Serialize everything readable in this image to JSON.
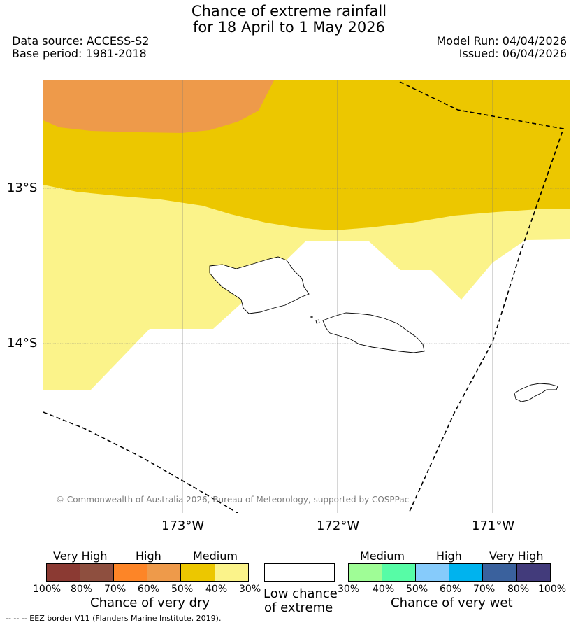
{
  "title": {
    "line1": "Chance of extreme rainfall",
    "line2": "for 18 April to 1 May 2026"
  },
  "meta": {
    "data_source": "Data source: ACCESS-S2",
    "base_period": "Base period: 1981-2018",
    "model_run": "Model Run: 04/04/2026",
    "issued": "Issued: 06/04/2026"
  },
  "map": {
    "lat_labels": [
      "13°S",
      "14°S"
    ],
    "lon_labels": [
      "173°W",
      "172°W",
      "171°W"
    ],
    "copyright": "© Commonwealth of Australia 2026, Bureau of Meteorology, supported by COSPPac",
    "region_colors": {
      "high": "#ee9a4a",
      "medium_dark": "#ecc700",
      "medium_light": "#fbf38a"
    },
    "islands": [
      "Savai'i",
      "Upolu",
      "Tutuila"
    ]
  },
  "legend": {
    "dry": {
      "levels": [
        {
          "label": "Very High",
          "colors": [
            "#8b3a33",
            "#8e4f3f"
          ]
        },
        {
          "label": "High",
          "colors": [
            "#fd8527",
            "#ee9a4a"
          ]
        },
        {
          "label": "Medium",
          "colors": [
            "#ecc700",
            "#fbf38a"
          ]
        }
      ],
      "ticks": [
        "100%",
        "80%",
        "70%",
        "60%",
        "50%",
        "40%",
        "30%"
      ],
      "caption": "Chance of very dry"
    },
    "low": {
      "line1": "Low chance",
      "line2": "of extreme",
      "color": "#ffffff"
    },
    "wet": {
      "levels": [
        {
          "label": "Medium",
          "colors": [
            "#9ffd96",
            "#57fca6"
          ]
        },
        {
          "label": "High",
          "colors": [
            "#86cbfb",
            "#00b3ee"
          ]
        },
        {
          "label": "Very High",
          "colors": [
            "#3a619d",
            "#423b7b"
          ]
        }
      ],
      "ticks": [
        "30%",
        "40%",
        "50%",
        "60%",
        "70%",
        "80%",
        "100%"
      ],
      "caption": "Chance of very wet"
    },
    "eez_note": "--  --  -- EEZ border V11 (Flanders Marine Institute, 2019)."
  }
}
